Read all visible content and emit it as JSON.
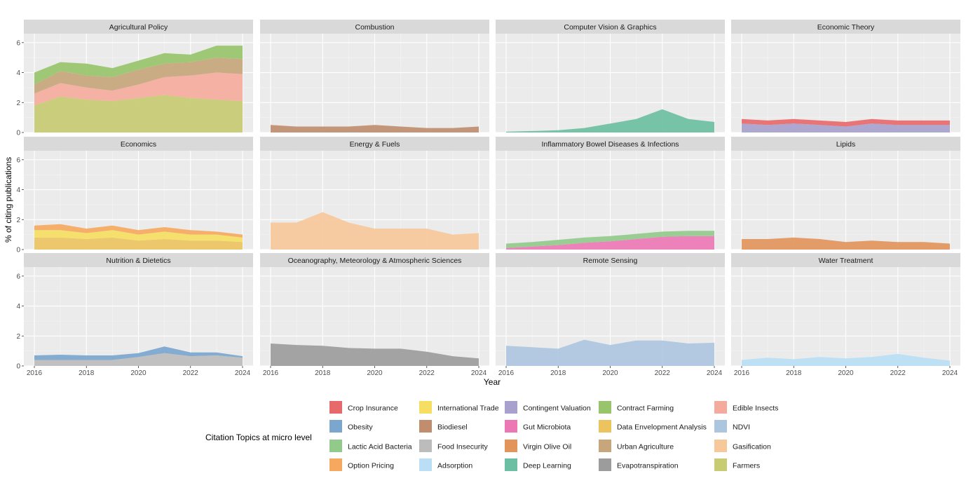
{
  "chart_data": {
    "type": "area",
    "stacked": true,
    "faceted": true,
    "xlabel": "Year",
    "ylabel": "% of citing publications",
    "x_ticks": [
      2016,
      2018,
      2020,
      2022,
      2024
    ],
    "y_ticks": [
      0,
      2,
      4,
      6
    ],
    "ylim": [
      0,
      6.6
    ],
    "xlim": [
      2016,
      2024
    ],
    "grid": true,
    "legend_title": "Citation Topics at micro level",
    "legend_position": "bottom",
    "legend": [
      {
        "name": "Crop Insurance",
        "color": "#E8696B"
      },
      {
        "name": "International Trade",
        "color": "#F5DE62"
      },
      {
        "name": "Contingent Valuation",
        "color": "#A8A1CD"
      },
      {
        "name": "Contract Farming",
        "color": "#98C46B"
      },
      {
        "name": "Edible Insects",
        "color": "#F4AB9D"
      },
      {
        "name": "Obesity",
        "color": "#7BA6CD"
      },
      {
        "name": "Biodiesel",
        "color": "#C08E6F"
      },
      {
        "name": "Gut Microbiota",
        "color": "#EB78B4"
      },
      {
        "name": "Data Envelopment Analysis",
        "color": "#EBC35F"
      },
      {
        "name": "NDVI",
        "color": "#ADC6DF"
      },
      {
        "name": "Lactic Acid Bacteria",
        "color": "#92CA8C"
      },
      {
        "name": "Food Insecurity",
        "color": "#BCBCBC"
      },
      {
        "name": "Virgin Olive Oil",
        "color": "#E2945B"
      },
      {
        "name": "Urban Agriculture",
        "color": "#C7A67B"
      },
      {
        "name": "Gasification",
        "color": "#F7C89A"
      },
      {
        "name": "Option Pricing",
        "color": "#F6A95E"
      },
      {
        "name": "Adsorption",
        "color": "#B9DEF5"
      },
      {
        "name": "Deep Learning",
        "color": "#6CBFA2"
      },
      {
        "name": "Evapotranspiration",
        "color": "#9C9C9C"
      },
      {
        "name": "Farmers",
        "color": "#C7CB72"
      }
    ],
    "years": [
      2016,
      2017,
      2018,
      2019,
      2020,
      2021,
      2022,
      2023,
      2024
    ],
    "panels": [
      {
        "title": "Agricultural Policy",
        "series": [
          {
            "name": "Farmers",
            "values": [
              1.8,
              2.4,
              2.2,
              2.1,
              2.3,
              2.5,
              2.3,
              2.2,
              2.1
            ]
          },
          {
            "name": "Edible Insects",
            "values": [
              0.8,
              0.9,
              0.8,
              0.7,
              0.9,
              1.2,
              1.5,
              1.8,
              1.8
            ]
          },
          {
            "name": "Urban Agriculture",
            "values": [
              0.6,
              0.8,
              0.8,
              0.9,
              1.0,
              0.9,
              0.9,
              1.0,
              1.0
            ]
          },
          {
            "name": "Contract Farming",
            "values": [
              0.8,
              0.6,
              0.8,
              0.6,
              0.6,
              0.7,
              0.5,
              0.8,
              0.9
            ]
          }
        ]
      },
      {
        "title": "Combustion",
        "series": [
          {
            "name": "Biodiesel",
            "values": [
              0.5,
              0.4,
              0.4,
              0.4,
              0.5,
              0.4,
              0.3,
              0.3,
              0.4
            ]
          }
        ]
      },
      {
        "title": "Computer Vision & Graphics",
        "series": [
          {
            "name": "Deep Learning",
            "values": [
              0.05,
              0.1,
              0.15,
              0.3,
              0.6,
              0.9,
              1.55,
              0.9,
              0.7
            ]
          }
        ]
      },
      {
        "title": "Economic Theory",
        "series": [
          {
            "name": "Contingent Valuation",
            "values": [
              0.6,
              0.5,
              0.6,
              0.5,
              0.4,
              0.6,
              0.5,
              0.5,
              0.5
            ]
          },
          {
            "name": "Crop Insurance",
            "values": [
              0.3,
              0.3,
              0.3,
              0.3,
              0.3,
              0.3,
              0.3,
              0.3,
              0.3
            ]
          }
        ]
      },
      {
        "title": "Economics",
        "series": [
          {
            "name": "Data Envelopment Analysis",
            "values": [
              0.8,
              0.8,
              0.7,
              0.8,
              0.6,
              0.7,
              0.6,
              0.6,
              0.5
            ]
          },
          {
            "name": "International Trade",
            "values": [
              0.5,
              0.5,
              0.4,
              0.5,
              0.4,
              0.5,
              0.4,
              0.4,
              0.3
            ]
          },
          {
            "name": "Option Pricing",
            "values": [
              0.3,
              0.4,
              0.3,
              0.3,
              0.3,
              0.3,
              0.3,
              0.2,
              0.2
            ]
          }
        ]
      },
      {
        "title": "Energy & Fuels",
        "series": [
          {
            "name": "Gasification",
            "values": [
              1.8,
              1.8,
              2.5,
              1.8,
              1.4,
              1.4,
              1.4,
              1.0,
              1.1
            ]
          }
        ]
      },
      {
        "title": "Inflammatory Bowel Diseases & Infections",
        "series": [
          {
            "name": "Gut Microbiota",
            "values": [
              0.1,
              0.2,
              0.3,
              0.45,
              0.55,
              0.7,
              0.85,
              0.9,
              0.9
            ]
          },
          {
            "name": "Lactic Acid Bacteria",
            "values": [
              0.3,
              0.3,
              0.35,
              0.35,
              0.35,
              0.35,
              0.35,
              0.35,
              0.35
            ]
          }
        ]
      },
      {
        "title": "Lipids",
        "series": [
          {
            "name": "Virgin Olive Oil",
            "values": [
              0.7,
              0.7,
              0.8,
              0.7,
              0.5,
              0.6,
              0.5,
              0.5,
              0.4
            ]
          }
        ]
      },
      {
        "title": "Nutrition & Dietetics",
        "series": [
          {
            "name": "Food Insecurity",
            "values": [
              0.4,
              0.4,
              0.4,
              0.4,
              0.6,
              0.85,
              0.65,
              0.7,
              0.55
            ]
          },
          {
            "name": "Obesity",
            "values": [
              0.3,
              0.35,
              0.3,
              0.3,
              0.25,
              0.45,
              0.25,
              0.2,
              0.1
            ]
          }
        ]
      },
      {
        "title": "Oceanography, Meteorology & Atmospheric Sciences",
        "series": [
          {
            "name": "Evapotranspiration",
            "values": [
              1.5,
              1.4,
              1.35,
              1.2,
              1.15,
              1.15,
              0.95,
              0.65,
              0.5
            ]
          }
        ]
      },
      {
        "title": "Remote Sensing",
        "series": [
          {
            "name": "NDVI",
            "values": [
              1.35,
              1.25,
              1.15,
              1.75,
              1.4,
              1.7,
              1.7,
              1.5,
              1.55
            ]
          }
        ]
      },
      {
        "title": "Water Treatment",
        "series": [
          {
            "name": "Adsorption",
            "values": [
              0.4,
              0.55,
              0.45,
              0.6,
              0.5,
              0.6,
              0.8,
              0.55,
              0.35
            ]
          }
        ]
      }
    ]
  }
}
